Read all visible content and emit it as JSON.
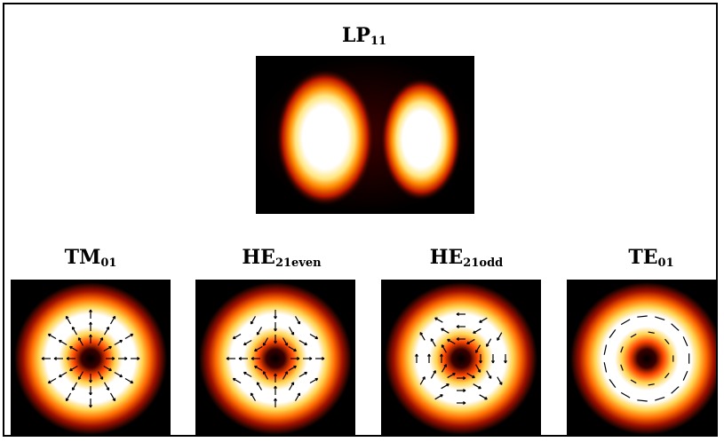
{
  "top": {
    "title_main": "LP",
    "title_sub": "11"
  },
  "modes": [
    {
      "title_main": "TM",
      "title_sub": "01",
      "pattern": "radial-arrows"
    },
    {
      "title_main": "HE",
      "title_sub": "21even",
      "pattern": "cross-arrows"
    },
    {
      "title_main": "HE",
      "title_sub": "21odd",
      "pattern": "rotated-cross-arrows"
    },
    {
      "title_main": "TE",
      "title_sub": "01",
      "pattern": "azimuthal-dashes"
    }
  ],
  "colors": {
    "background": "#000000",
    "outer_glow": "#8b0000",
    "mid": "#ff4500",
    "hot": "#ffd700",
    "peak": "#ffffff"
  }
}
